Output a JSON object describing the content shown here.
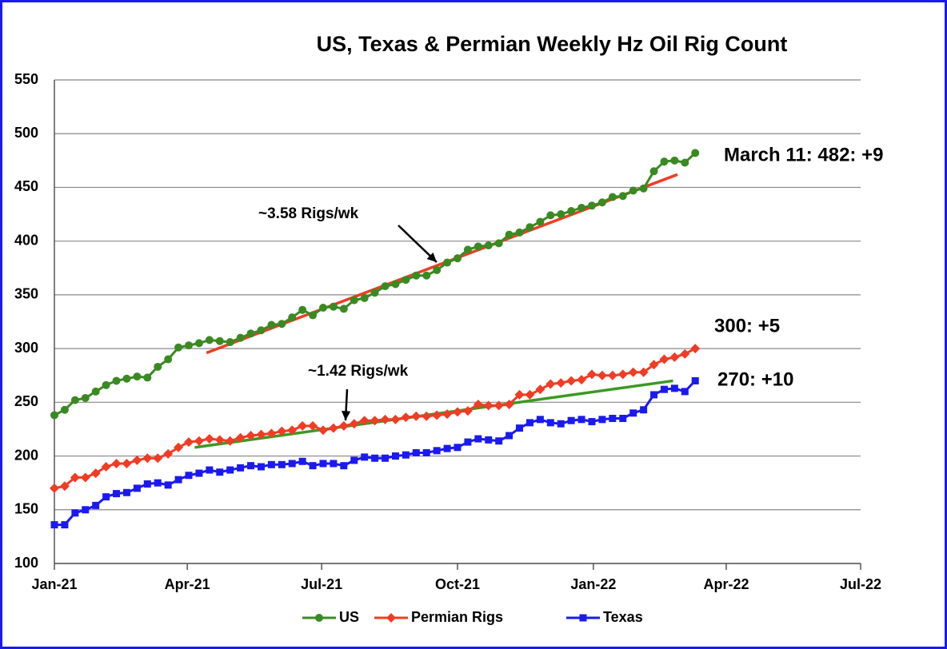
{
  "chart_data": {
    "type": "line",
    "title": "US, Texas & Permian Weekly Hz Oil Rig Count",
    "x": [
      "2021-01-01",
      "2021-01-08",
      "2021-01-15",
      "2021-01-22",
      "2021-01-29",
      "2021-02-05",
      "2021-02-12",
      "2021-02-19",
      "2021-02-26",
      "2021-03-05",
      "2021-03-12",
      "2021-03-19",
      "2021-03-26",
      "2021-04-02",
      "2021-04-09",
      "2021-04-16",
      "2021-04-23",
      "2021-04-30",
      "2021-05-07",
      "2021-05-14",
      "2021-05-21",
      "2021-05-28",
      "2021-06-04",
      "2021-06-11",
      "2021-06-18",
      "2021-06-25",
      "2021-07-02",
      "2021-07-09",
      "2021-07-16",
      "2021-07-23",
      "2021-07-30",
      "2021-08-06",
      "2021-08-13",
      "2021-08-20",
      "2021-08-27",
      "2021-09-03",
      "2021-09-10",
      "2021-09-17",
      "2021-09-24",
      "2021-10-01",
      "2021-10-08",
      "2021-10-15",
      "2021-10-22",
      "2021-10-29",
      "2021-11-05",
      "2021-11-12",
      "2021-11-19",
      "2021-11-26",
      "2021-12-03",
      "2021-12-10",
      "2021-12-17",
      "2021-12-24",
      "2021-12-31",
      "2022-01-07",
      "2022-01-14",
      "2022-01-21",
      "2022-01-28",
      "2022-02-04",
      "2022-02-11",
      "2022-02-18",
      "2022-02-25",
      "2022-03-04",
      "2022-03-11"
    ],
    "series": [
      {
        "name": "US",
        "color": "#3a8a22",
        "marker": "circle",
        "values": [
          238,
          243,
          252,
          254,
          260,
          266,
          270,
          272,
          274,
          273,
          283,
          290,
          301,
          303,
          305,
          308,
          307,
          306,
          310,
          314,
          317,
          322,
          323,
          329,
          336,
          331,
          338,
          339,
          337,
          345,
          347,
          352,
          358,
          360,
          364,
          368,
          368,
          373,
          380,
          384,
          392,
          395,
          396,
          398,
          406,
          408,
          413,
          418,
          424,
          425,
          428,
          431,
          433,
          436,
          441,
          442,
          447,
          449,
          465,
          474,
          475,
          473,
          482
        ]
      },
      {
        "name": "Permian Rigs",
        "color": "#f03c24",
        "marker": "diamond",
        "values": [
          170,
          172,
          180,
          180,
          184,
          190,
          193,
          193,
          196,
          198,
          198,
          202,
          208,
          213,
          214,
          216,
          215,
          214,
          217,
          219,
          220,
          221,
          223,
          224,
          228,
          228,
          224,
          226,
          228,
          230,
          233,
          233,
          234,
          234,
          236,
          237,
          237,
          238,
          239,
          241,
          242,
          248,
          247,
          247,
          248,
          257,
          257,
          262,
          267,
          268,
          270,
          271,
          276,
          275,
          275,
          276,
          278,
          278,
          285,
          290,
          292,
          295,
          300
        ]
      },
      {
        "name": "Texas",
        "color": "#1a1af0",
        "marker": "square",
        "values": [
          136,
          136,
          147,
          150,
          154,
          162,
          165,
          166,
          170,
          174,
          175,
          173,
          178,
          182,
          184,
          187,
          185,
          187,
          189,
          191,
          190,
          192,
          192,
          193,
          195,
          191,
          193,
          193,
          191,
          196,
          199,
          198,
          198,
          200,
          201,
          203,
          203,
          205,
          207,
          208,
          213,
          216,
          215,
          214,
          219,
          226,
          231,
          234,
          231,
          230,
          233,
          234,
          232,
          234,
          235,
          235,
          240,
          243,
          257,
          262,
          263,
          260,
          270
        ]
      }
    ],
    "trendlines": [
      {
        "color": "#f03c24",
        "x": [
          "2021-04-14",
          "2022-02-27"
        ],
        "values": [
          296,
          462
        ]
      },
      {
        "color": "#3a9a22",
        "x": [
          "2021-04-06",
          "2022-02-24"
        ],
        "values": [
          208,
          270
        ]
      }
    ],
    "annotations": [
      "~3.58 Rigs/wk",
      "~1.42 Rigs/wk",
      "March 11: 482: +9",
      "300: +5",
      "270: +10"
    ],
    "xlim": [
      "2021-01-01",
      "2022-07-01"
    ],
    "xticks": [
      {
        "value": "2021-01-01",
        "label": "Jan-21"
      },
      {
        "value": "2021-04-01",
        "label": "Apr-21"
      },
      {
        "value": "2021-07-01",
        "label": "Jul-21"
      },
      {
        "value": "2021-10-01",
        "label": "Oct-21"
      },
      {
        "value": "2022-01-01",
        "label": "Jan-22"
      },
      {
        "value": "2022-04-01",
        "label": "Apr-22"
      },
      {
        "value": "2022-07-01",
        "label": "Jul-22"
      }
    ],
    "ylim": [
      100,
      550
    ],
    "yticks": [
      100,
      150,
      200,
      250,
      300,
      350,
      400,
      450,
      500,
      550
    ],
    "grid": true,
    "legend": "bottom"
  }
}
